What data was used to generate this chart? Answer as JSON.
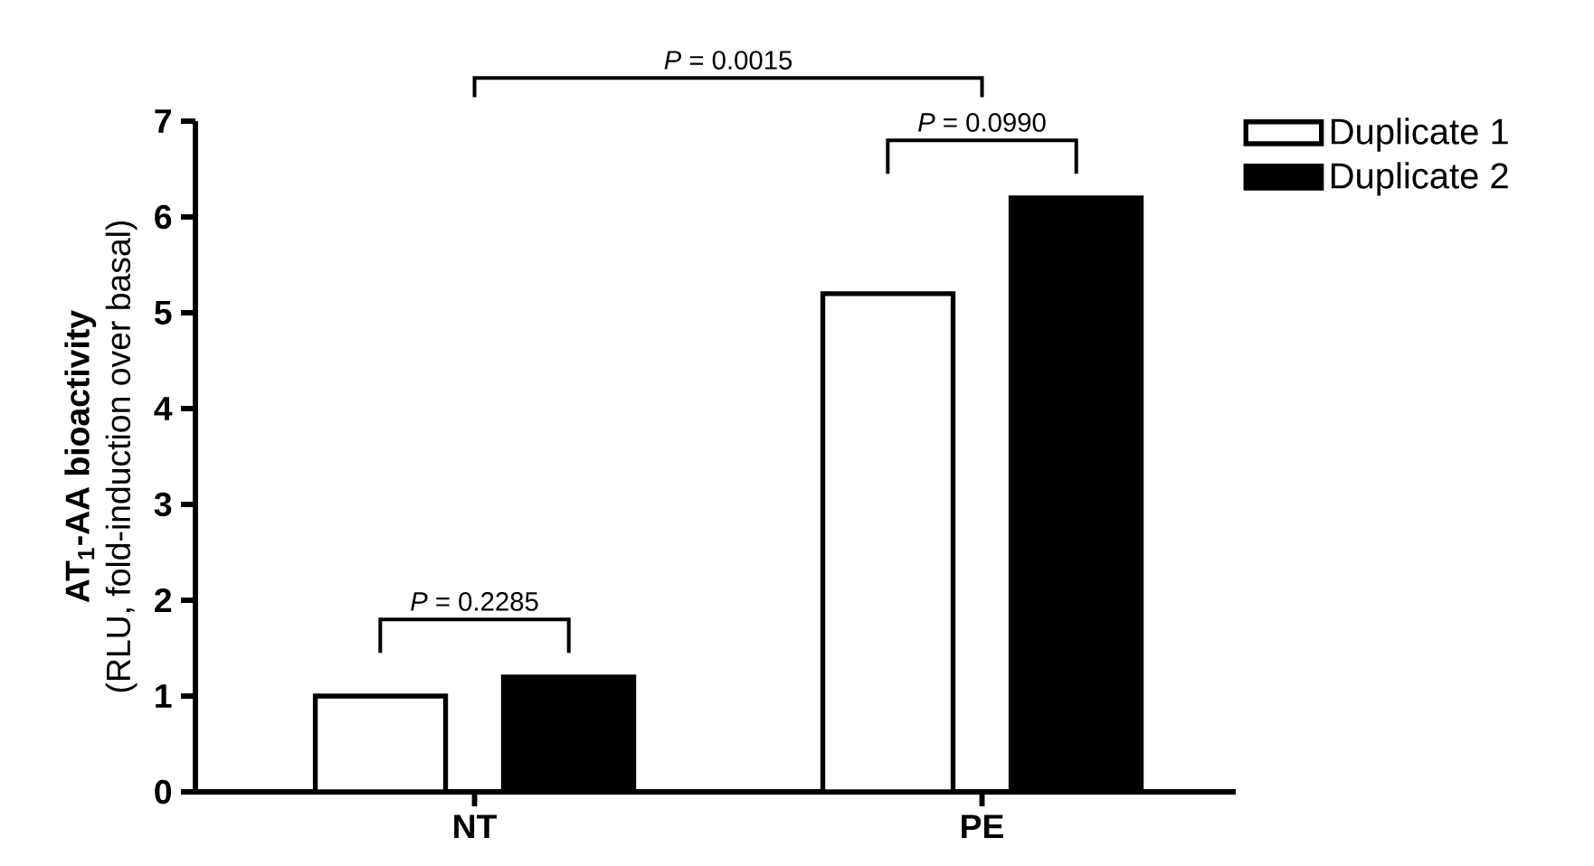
{
  "chart_data": {
    "type": "bar",
    "ylabel": "**AT$_{1}$-AA bioactivity**\n(RLU, fold-induction over basal)",
    "categories": [
      "NT",
      "PE"
    ],
    "series": [
      {
        "name": "Duplicate 1",
        "color": "#ffffff",
        "values": [
          1.0,
          5.2
        ]
      },
      {
        "name": "Duplicate 2",
        "color": "#000000",
        "values": [
          1.2,
          6.2
        ]
      }
    ],
    "ylim": [
      0,
      7
    ],
    "yticks": [
      0,
      1,
      2,
      3,
      4,
      5,
      6,
      7
    ],
    "grid": false,
    "legend": "top right",
    "annotations": [
      "*P* = 0.2285",
      "*P* = 0.0990",
      "*P* = 0.0015"
    ]
  }
}
